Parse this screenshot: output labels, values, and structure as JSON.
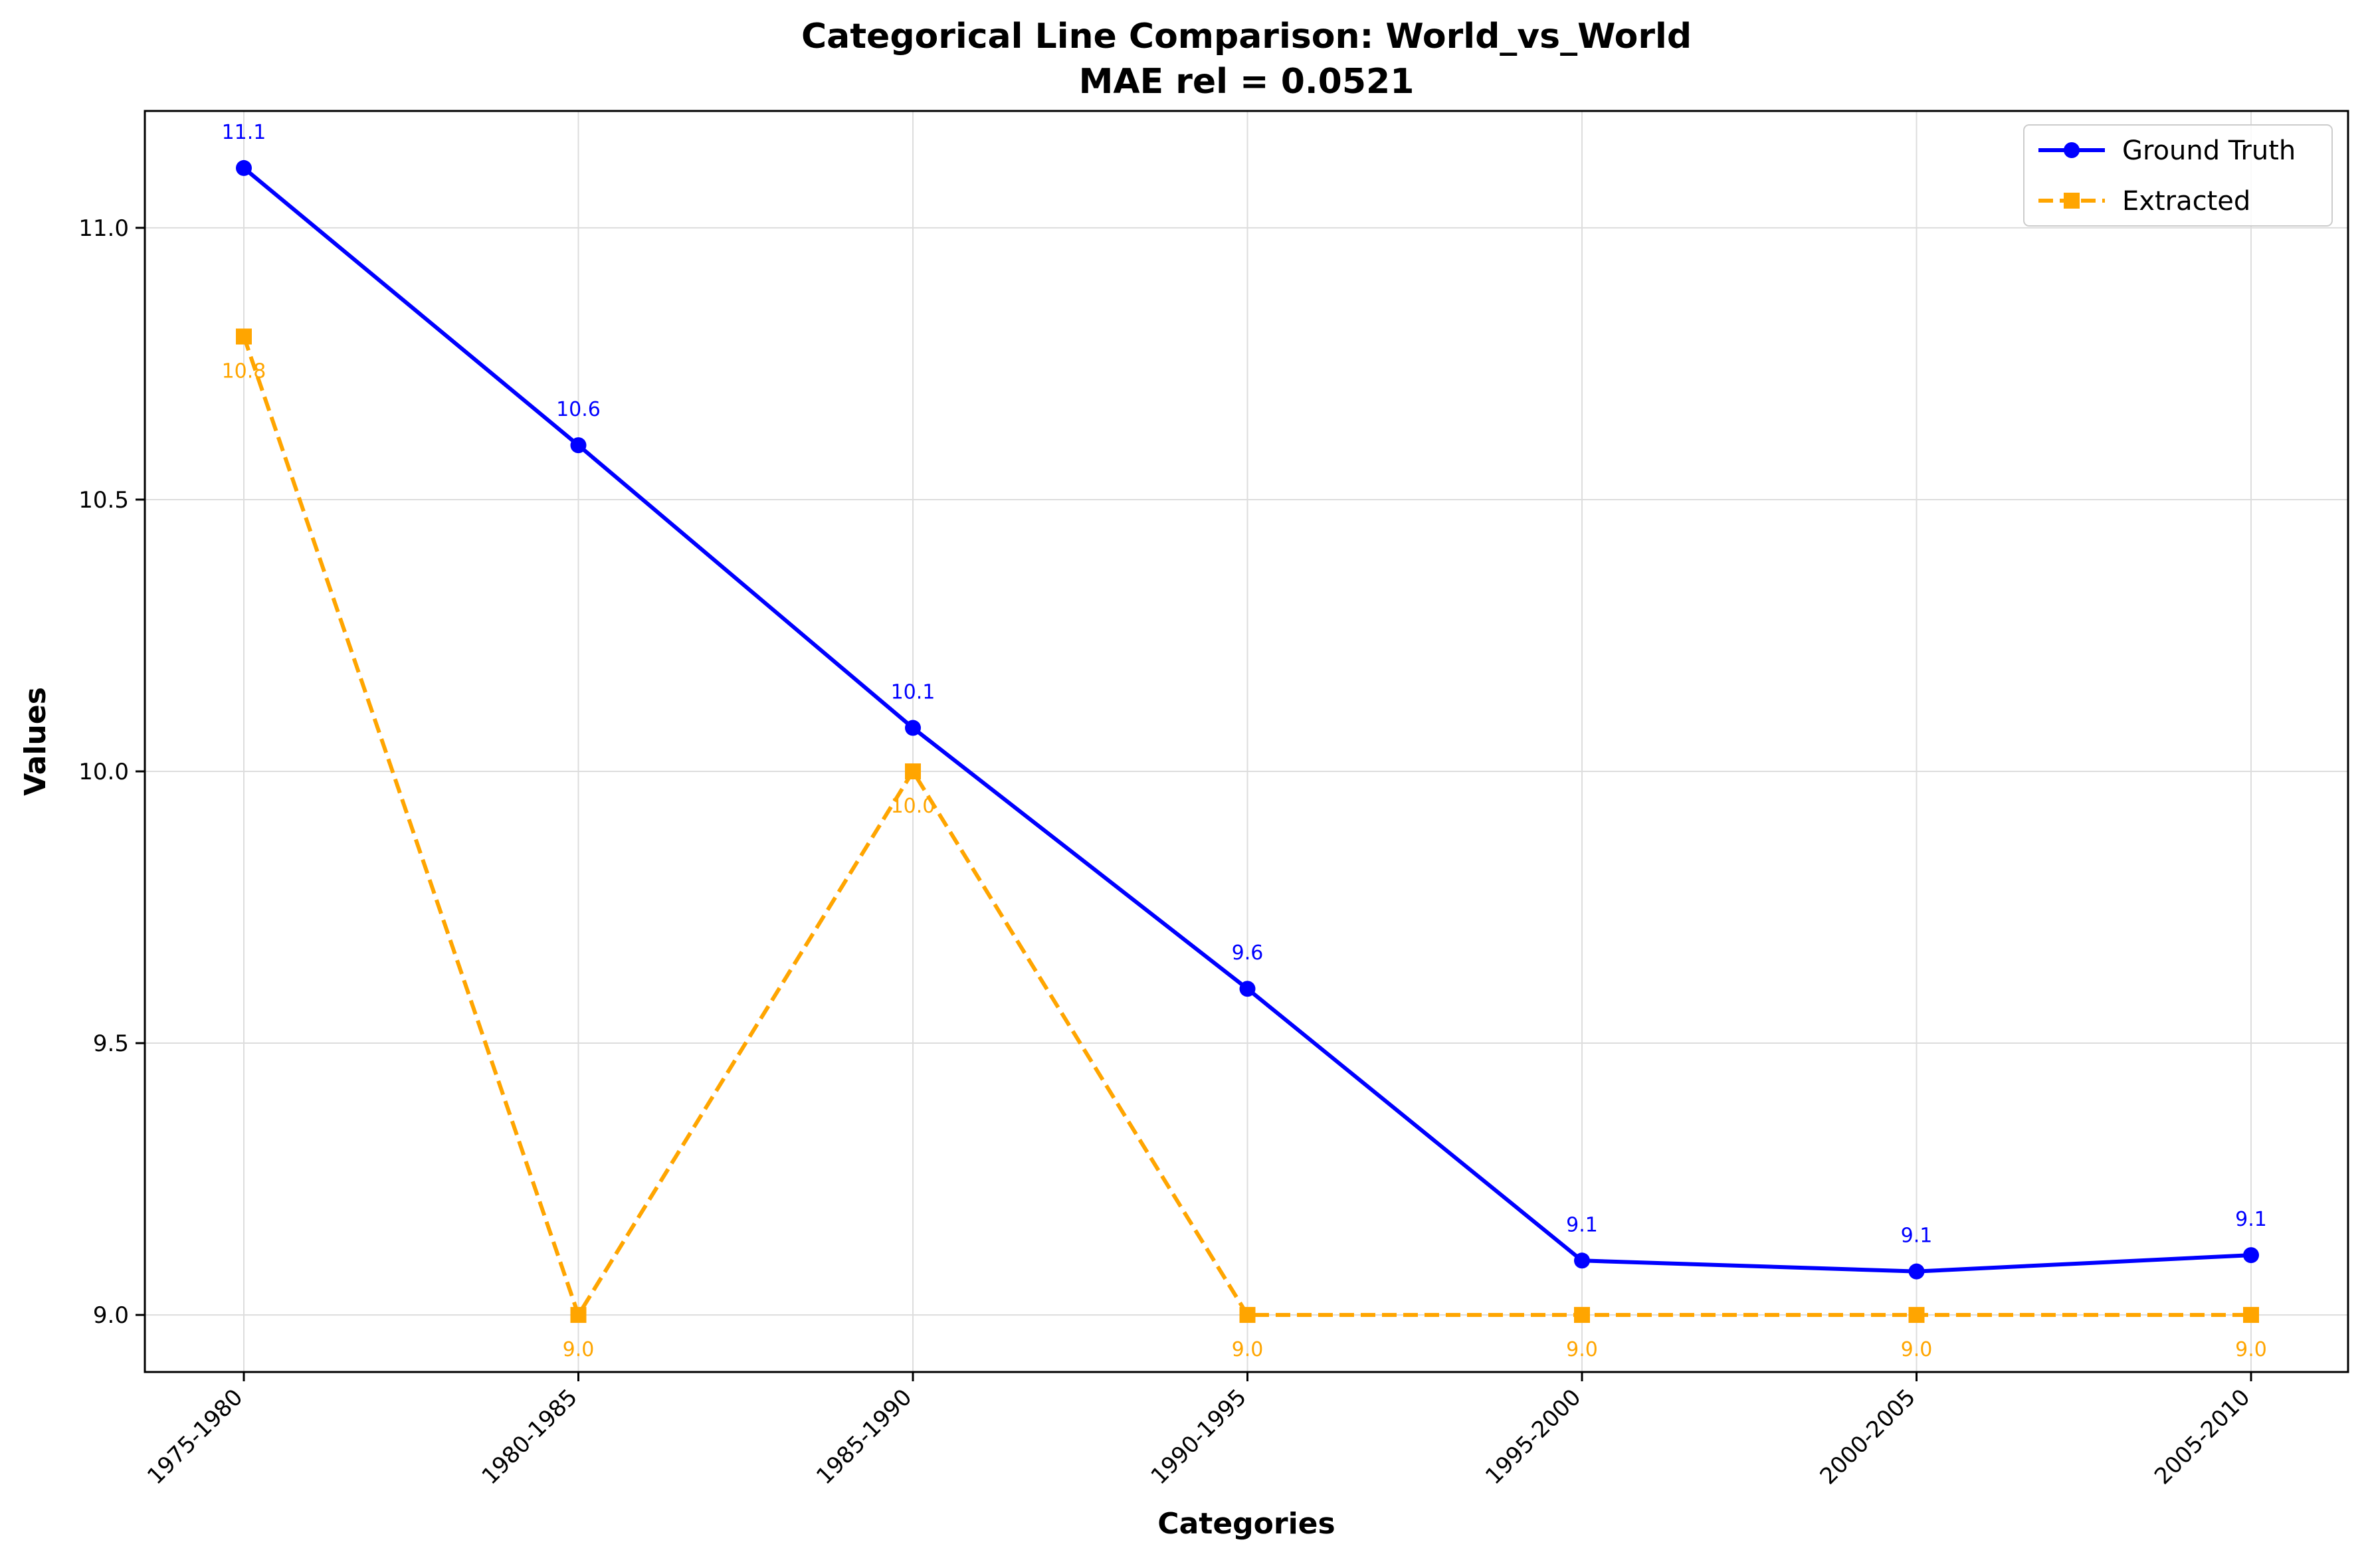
{
  "chart_data": {
    "type": "line",
    "title": "Categorical Line Comparison: World_vs_World",
    "subtitle": "MAE rel = 0.0521",
    "xlabel": "Categories",
    "ylabel": "Values",
    "categories": [
      "1975-1980",
      "1980-1985",
      "1985-1990",
      "1990-1995",
      "1995-2000",
      "2000-2005",
      "2005-2010"
    ],
    "ylim": [
      8.895,
      11.215
    ],
    "yticks": [
      9.0,
      9.5,
      10.0,
      10.5,
      11.0
    ],
    "ytick_labels": [
      "9.0",
      "9.5",
      "10.0",
      "10.5",
      "11.0"
    ],
    "grid": true,
    "legend_position": "top-right",
    "series": [
      {
        "name": "Ground Truth",
        "color": "#0000ff",
        "line_style": "solid",
        "marker": "circle",
        "values": [
          11.11,
          10.6,
          10.08,
          9.6,
          9.1,
          9.08,
          9.11
        ],
        "labels": [
          "11.1",
          "10.6",
          "10.1",
          "9.6",
          "9.1",
          "9.1",
          "9.1"
        ]
      },
      {
        "name": "Extracted",
        "color": "#ffa500",
        "line_style": "dashed",
        "marker": "square",
        "values": [
          10.8,
          9.0,
          10.0,
          9.0,
          9.0,
          9.0,
          9.0
        ],
        "labels": [
          "10.8",
          "9.0",
          "10.0",
          "9.0",
          "9.0",
          "9.0",
          "9.0"
        ]
      }
    ]
  }
}
